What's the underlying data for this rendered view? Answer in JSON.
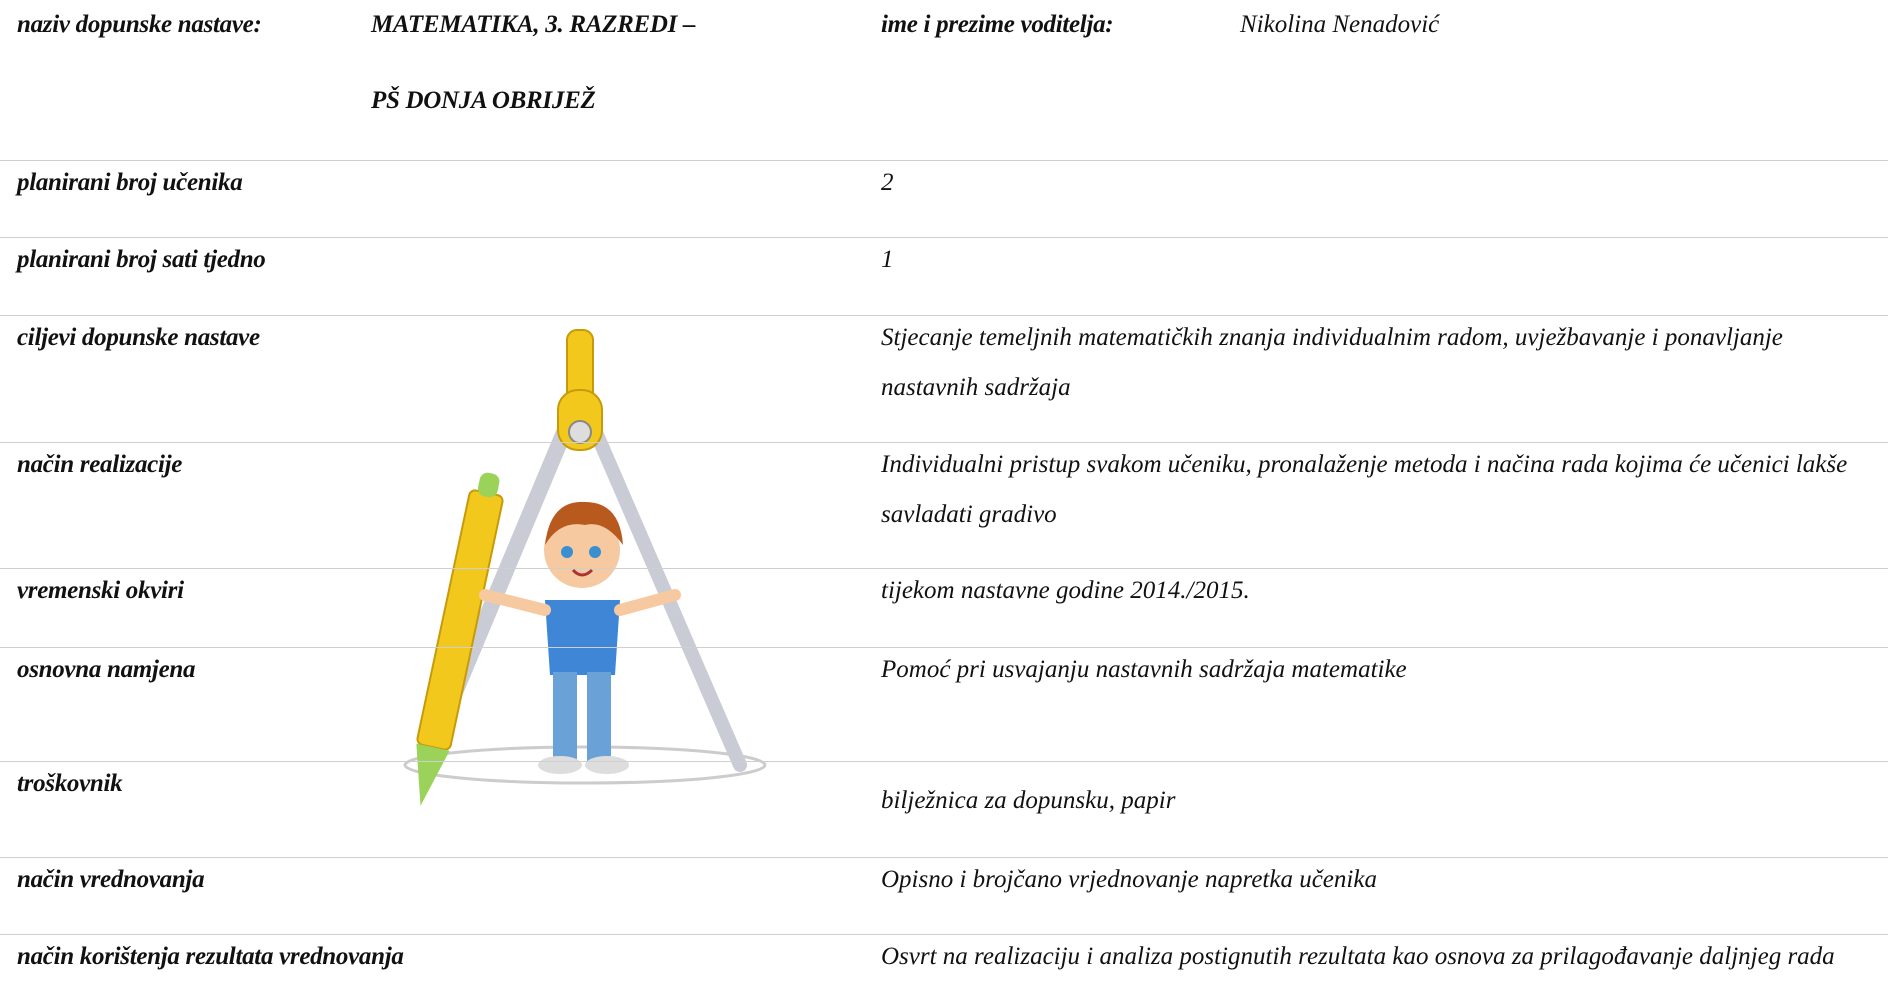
{
  "header": {
    "label": "naziv dopunske nastave:",
    "title": [
      "MATEMATIKA, 3. RAZREDI –",
      "PŠ DONJA OBRIJEŽ"
    ],
    "leader_label": "ime i prezime voditelja:",
    "leader": "Nikolina Nenadović"
  },
  "rows": [
    {
      "label": "planirani broj učenika",
      "value": "2"
    },
    {
      "label": "planirani broj sati tjedno",
      "value": "1"
    },
    {
      "label": "ciljevi dopunske nastave",
      "value": "Stjecanje temeljnih matematičkih znanja individualnim radom, uvježbavanje i ponavljanje nastavnih sadržaja"
    },
    {
      "label": "način realizacije",
      "value": "Individualni pristup svakom učeniku, pronalaženje metoda i načina rada kojima će učenici lakše savladati gradivo"
    },
    {
      "label": "vremenski okviri",
      "value": "tijekom nastavne godine 2014./2015."
    },
    {
      "label": "osnovna namjena",
      "value": "Pomoć pri usvajanju nastavnih sadržaja matematike"
    },
    {
      "label": "troškovnik",
      "value": "bilježnica za dopunsku, papir"
    },
    {
      "label": "način vrednovanja",
      "value": "Opisno i brojčano vrjednovanje napretka učenika"
    },
    {
      "label": "način korištenja rezultata vrednovanja",
      "value": "Osvrt na realizaciju i analiza postignutih rezultata kao osnova za prilagođavanje daljnjeg rada"
    }
  ]
}
